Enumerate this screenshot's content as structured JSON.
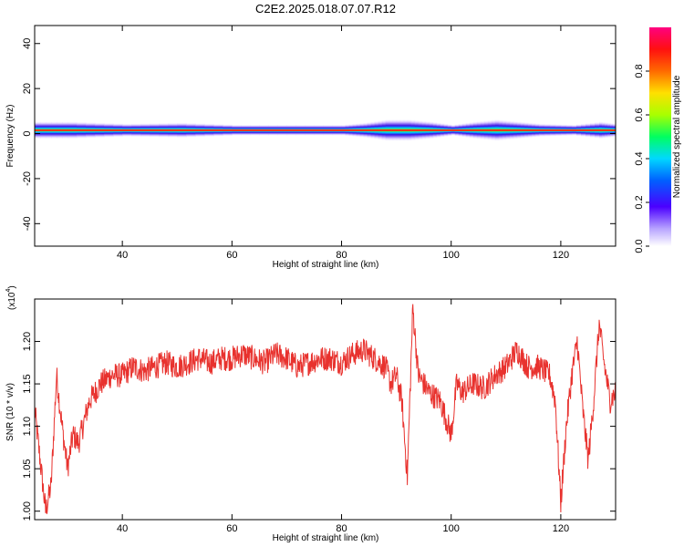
{
  "title": "C2E2.2025.018.07.07.R12",
  "colors": {
    "snr_line": "#e8322e",
    "spectrum_low": "#ffffff",
    "spectrum_high": "#ff0080"
  },
  "chart_data": [
    {
      "type": "heatmap",
      "xlabel": "Height of straight line (km)",
      "ylabel": "Frequency (Hz)",
      "xlim": [
        24,
        130
      ],
      "ylim": [
        -50,
        48
      ],
      "xticks": [
        40,
        60,
        80,
        100,
        120
      ],
      "yticks": [
        -40,
        -20,
        0,
        20,
        40
      ],
      "xtick_labels": [
        "40",
        "60",
        "80",
        "100",
        "120"
      ],
      "ytick_labels": [
        "-40",
        "-20",
        "0",
        "20",
        "40"
      ],
      "colorbar": {
        "label": "Normalized spectral amplitude",
        "range": [
          0,
          1
        ],
        "ticks": [
          "0.0",
          "0.2",
          "0.4",
          "0.6",
          "0.8"
        ]
      },
      "band": {
        "center_hz": 1.5,
        "core_halfwidth_hz": 1,
        "spread_profile": [
          {
            "x": 24,
            "halfwidth": 4
          },
          {
            "x": 30,
            "halfwidth": 4
          },
          {
            "x": 40,
            "halfwidth": 3
          },
          {
            "x": 50,
            "halfwidth": 3.5
          },
          {
            "x": 60,
            "halfwidth": 2.5
          },
          {
            "x": 70,
            "halfwidth": 2.5
          },
          {
            "x": 80,
            "halfwidth": 2.5
          },
          {
            "x": 84,
            "halfwidth": 3.5
          },
          {
            "x": 88,
            "halfwidth": 5
          },
          {
            "x": 92,
            "halfwidth": 5
          },
          {
            "x": 96,
            "halfwidth": 4
          },
          {
            "x": 100,
            "halfwidth": 2.5
          },
          {
            "x": 104,
            "halfwidth": 4
          },
          {
            "x": 108,
            "halfwidth": 5
          },
          {
            "x": 112,
            "halfwidth": 4
          },
          {
            "x": 116,
            "halfwidth": 3
          },
          {
            "x": 122,
            "halfwidth": 2.5
          },
          {
            "x": 127,
            "halfwidth": 4
          },
          {
            "x": 130,
            "halfwidth": 3
          }
        ]
      },
      "grid": false
    },
    {
      "type": "line",
      "xlabel": "Height of straight line (km)",
      "ylabel": "SNR (10 * v/v)",
      "y_scale_label": "(x10",
      "y_scale_exponent": "4",
      "xlim": [
        24,
        130
      ],
      "ylim": [
        0.99,
        1.25
      ],
      "xticks": [
        40,
        60,
        80,
        100,
        120
      ],
      "yticks": [
        1.0,
        1.05,
        1.1,
        1.15,
        1.2
      ],
      "xtick_labels": [
        "40",
        "60",
        "80",
        "100",
        "120"
      ],
      "ytick_labels": [
        "1.00",
        "1.05",
        "1.10",
        "1.15",
        "1.20"
      ],
      "series": [
        {
          "x": [
            24,
            25,
            26,
            27,
            28,
            29,
            30,
            31,
            32,
            34,
            36,
            38,
            40,
            42,
            44,
            46,
            48,
            50,
            52,
            54,
            56,
            58,
            60,
            62,
            64,
            66,
            68,
            70,
            72,
            74,
            76,
            78,
            80,
            82,
            84,
            86,
            88,
            89,
            90,
            91,
            92,
            93,
            94,
            96,
            98,
            99,
            100,
            101,
            102,
            104,
            106,
            108,
            110,
            112,
            114,
            116,
            118,
            119,
            120,
            121,
            122,
            123,
            124,
            125,
            126,
            127,
            128,
            129,
            130
          ],
          "y": [
            1.12,
            1.06,
            1.0,
            1.03,
            1.16,
            1.1,
            1.05,
            1.09,
            1.08,
            1.13,
            1.15,
            1.16,
            1.16,
            1.17,
            1.165,
            1.17,
            1.175,
            1.17,
            1.175,
            1.18,
            1.175,
            1.18,
            1.18,
            1.185,
            1.18,
            1.175,
            1.185,
            1.18,
            1.17,
            1.175,
            1.18,
            1.18,
            1.175,
            1.185,
            1.19,
            1.18,
            1.17,
            1.15,
            1.16,
            1.13,
            1.04,
            1.24,
            1.16,
            1.14,
            1.13,
            1.11,
            1.09,
            1.15,
            1.14,
            1.15,
            1.145,
            1.16,
            1.17,
            1.19,
            1.17,
            1.17,
            1.16,
            1.13,
            1.01,
            1.1,
            1.16,
            1.2,
            1.12,
            1.06,
            1.13,
            1.22,
            1.17,
            1.13,
            1.14
          ]
        }
      ],
      "grid": false
    }
  ]
}
